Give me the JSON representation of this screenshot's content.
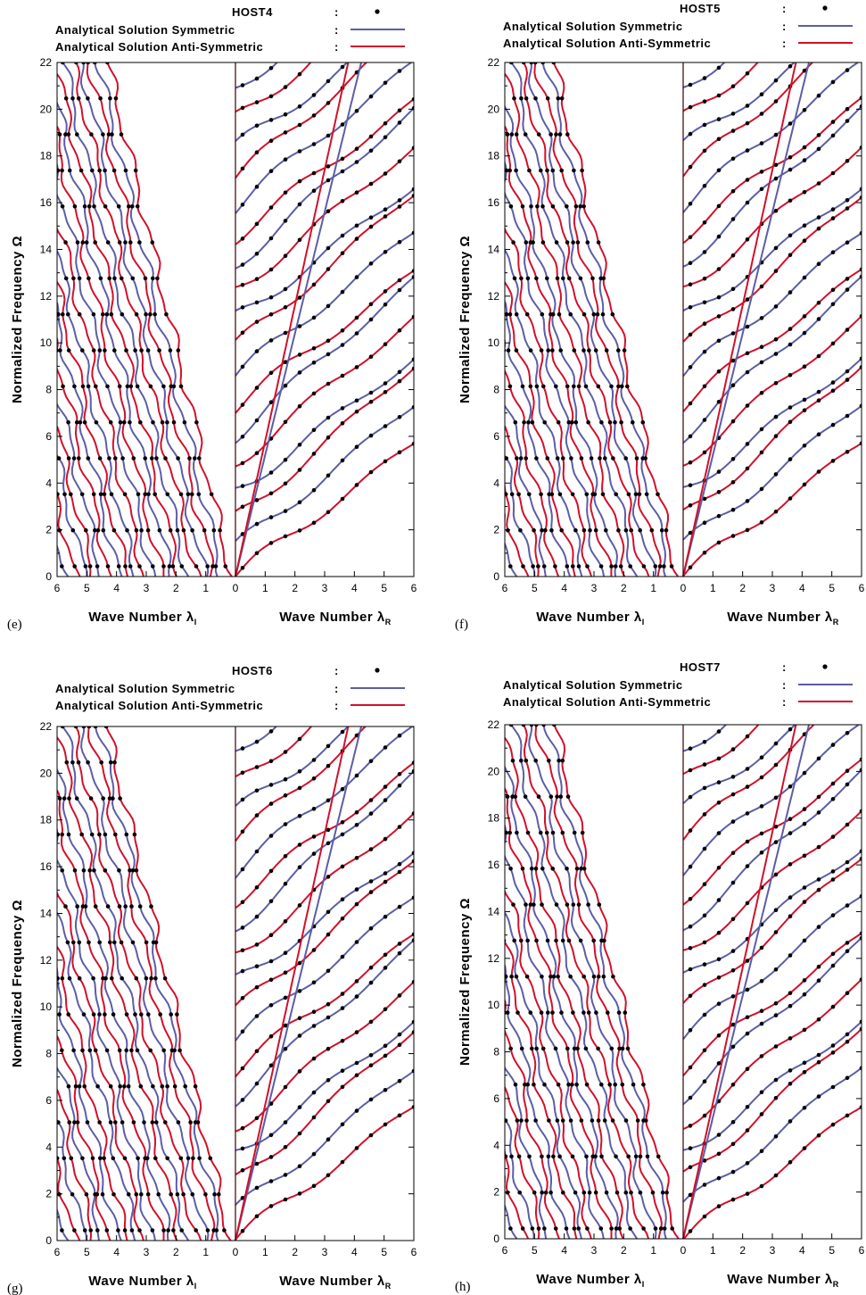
{
  "colors": {
    "symmetric": "#5b5ea6",
    "antisymmetric": "#d0112b",
    "points": "#000000"
  },
  "chart_data": [
    {
      "type": "line",
      "panel_label": "(e)",
      "legend": {
        "points": "HOST4",
        "symmetric": "Analytical Solution Symmetric",
        "antisymmetric": "Analytical Solution Anti-Symmetric",
        "separator": ":",
        "placement": "top"
      },
      "ylabel": "Normalized Frequency Ω",
      "xlabel_left": "Wave Number λ",
      "xlabel_left_sub": "I",
      "xlabel_right": "Wave Number λ",
      "xlabel_right_sub": "R",
      "ylim": [
        0,
        22
      ],
      "yticks": [
        "0",
        "2",
        "4",
        "6",
        "8",
        "10",
        "12",
        "14",
        "16",
        "18",
        "20",
        "22"
      ],
      "xlim_imag": [
        6,
        0
      ],
      "xlim_real": [
        0,
        6
      ],
      "xticks": [
        "6",
        "5",
        "4",
        "3",
        "2",
        "1",
        "0",
        "1",
        "2",
        "3",
        "4",
        "5",
        "6"
      ],
      "seed": 4
    },
    {
      "type": "line",
      "panel_label": "(f)",
      "legend": {
        "points": "HOST5",
        "symmetric": "Analytical Solution Symmetric",
        "antisymmetric": "Analytical Solution Anti-Symmetric",
        "separator": ":",
        "placement": "top"
      },
      "ylabel": "Normalized Frequency Ω",
      "xlabel_left": "Wave Number λ",
      "xlabel_left_sub": "I",
      "xlabel_right": "Wave Number λ",
      "xlabel_right_sub": "R",
      "ylim": [
        0,
        22
      ],
      "yticks": [
        "0",
        "2",
        "4",
        "6",
        "8",
        "10",
        "12",
        "14",
        "16",
        "18",
        "20",
        "22"
      ],
      "xlim_imag": [
        6,
        0
      ],
      "xlim_real": [
        0,
        6
      ],
      "xticks": [
        "6",
        "5",
        "4",
        "3",
        "2",
        "1",
        "0",
        "1",
        "2",
        "3",
        "4",
        "5",
        "6"
      ],
      "seed": 5
    },
    {
      "type": "line",
      "panel_label": "(g)",
      "legend": {
        "points": "HOST6",
        "symmetric": "Analytical Solution Symmetric",
        "antisymmetric": "Analytical Solution Anti-Symmetric",
        "separator": ":",
        "placement": "top"
      },
      "ylabel": "Normalized Frequency Ω",
      "xlabel_left": "Wave Number λ",
      "xlabel_left_sub": "I",
      "xlabel_right": "Wave Number λ",
      "xlabel_right_sub": "R",
      "ylim": [
        0,
        22
      ],
      "yticks": [
        "0",
        "2",
        "4",
        "6",
        "8",
        "10",
        "12",
        "14",
        "16",
        "18",
        "20",
        "22"
      ],
      "xlim_imag": [
        6,
        0
      ],
      "xlim_real": [
        0,
        6
      ],
      "xticks": [
        "6",
        "5",
        "4",
        "3",
        "2",
        "1",
        "0",
        "1",
        "2",
        "3",
        "4",
        "5",
        "6"
      ],
      "seed": 6
    },
    {
      "type": "line",
      "panel_label": "(h)",
      "legend": {
        "points": "HOST7",
        "symmetric": "Analytical Solution Symmetric",
        "antisymmetric": "Analytical Solution Anti-Symmetric",
        "separator": ":",
        "placement": "top"
      },
      "ylabel": "Normalized Frequency Ω",
      "xlabel_left": "Wave Number λ",
      "xlabel_left_sub": "I",
      "xlabel_right": "Wave Number λ",
      "xlabel_right_sub": "R",
      "ylim": [
        0,
        22
      ],
      "yticks": [
        "0",
        "2",
        "4",
        "6",
        "8",
        "10",
        "12",
        "14",
        "16",
        "18",
        "20",
        "22"
      ],
      "xlim_imag": [
        6,
        0
      ],
      "xlim_real": [
        0,
        6
      ],
      "xticks": [
        "6",
        "5",
        "4",
        "3",
        "2",
        "1",
        "0",
        "1",
        "2",
        "3",
        "4",
        "5",
        "6"
      ],
      "seed": 7
    }
  ]
}
